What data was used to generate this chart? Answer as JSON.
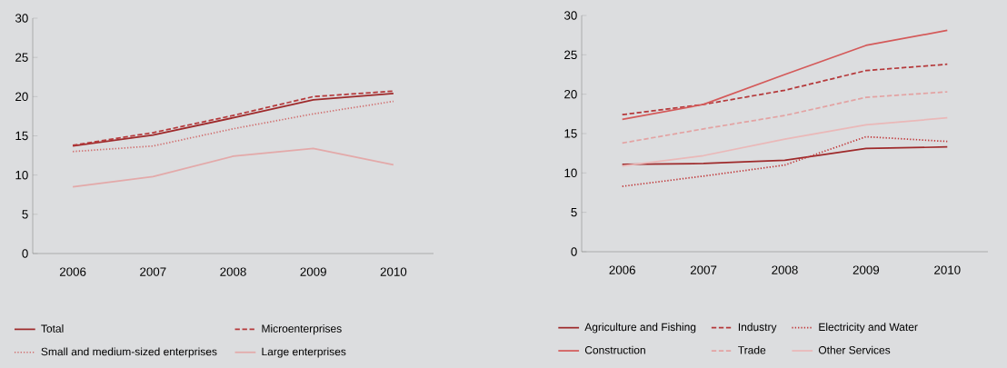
{
  "chart_data": [
    {
      "type": "line",
      "categories": [
        "2006",
        "2007",
        "2008",
        "2009",
        "2010"
      ],
      "ylim": [
        0,
        30
      ],
      "yticks": [
        0,
        5,
        10,
        15,
        20,
        25,
        30
      ],
      "legend": "bottom",
      "series": [
        {
          "name": "Total",
          "color": "#9e2a2b",
          "line_style": "solid",
          "values": [
            13.7,
            15.1,
            17.3,
            19.6,
            20.4
          ]
        },
        {
          "name": "Microenterprises",
          "color": "#b5393b",
          "line_style": "dashed",
          "values": [
            13.8,
            15.4,
            17.6,
            20.0,
            20.7
          ]
        },
        {
          "name": "Small and medium-sized enterprises",
          "color": "#d07070",
          "line_style": "dotted",
          "values": [
            13.0,
            13.7,
            15.9,
            17.8,
            19.4
          ]
        },
        {
          "name": "Large enterprises",
          "color": "#e3a9a9",
          "line_style": "solid",
          "values": [
            8.5,
            9.8,
            12.4,
            13.4,
            11.3
          ]
        }
      ]
    },
    {
      "type": "line",
      "categories": [
        "2006",
        "2007",
        "2008",
        "2009",
        "2010"
      ],
      "ylim": [
        0,
        30
      ],
      "yticks": [
        0,
        5,
        10,
        15,
        20,
        25,
        30
      ],
      "legend": "bottom",
      "series": [
        {
          "name": "Agriculture and Fishing",
          "color": "#9e2a2b",
          "line_style": "solid",
          "values": [
            11.1,
            11.2,
            11.6,
            13.1,
            13.3
          ]
        },
        {
          "name": "Industry",
          "color": "#b5393b",
          "line_style": "dashed",
          "values": [
            17.4,
            18.7,
            20.5,
            23.0,
            23.8
          ]
        },
        {
          "name": "Electricity and Water",
          "color": "#c0393b",
          "line_style": "dotted",
          "values": [
            8.3,
            9.6,
            11.0,
            14.6,
            14.0
          ]
        },
        {
          "name": "Construction",
          "color": "#d45a5a",
          "line_style": "solid",
          "values": [
            16.8,
            18.7,
            22.5,
            26.2,
            28.1
          ]
        },
        {
          "name": "Trade",
          "color": "#e3a3a3",
          "line_style": "dashed",
          "values": [
            13.8,
            15.6,
            17.3,
            19.6,
            20.3
          ]
        },
        {
          "name": "Other Services",
          "color": "#eab8b8",
          "line_style": "solid",
          "values": [
            10.9,
            12.2,
            14.3,
            16.1,
            17.0
          ]
        }
      ]
    }
  ]
}
